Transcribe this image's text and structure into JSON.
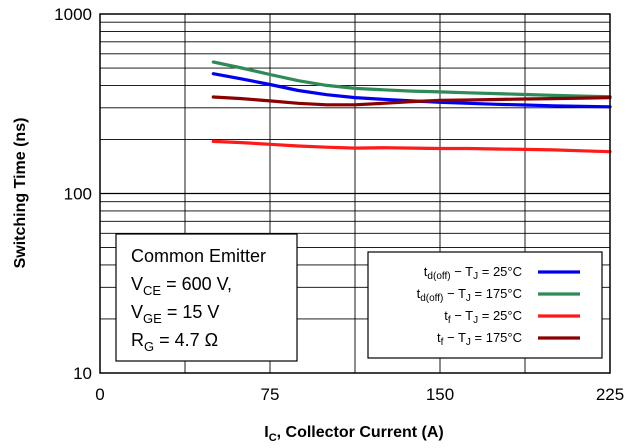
{
  "chart_data": {
    "type": "line",
    "title": "",
    "xlabel": {
      "main": "I",
      "sub": "C",
      "rest": ", Collector Current (A)"
    },
    "ylabel": "Switching Time (ns)",
    "xlim": [
      0,
      225
    ],
    "ylim": [
      10,
      1000
    ],
    "yscale": "log",
    "grid": true,
    "xticks": [
      0,
      75,
      150,
      225
    ],
    "xtick_labels": [
      "0",
      "75",
      "150",
      "225"
    ],
    "ytick_values": [
      10,
      100,
      1000
    ],
    "ytick_labels": [
      "10",
      "100",
      "1000"
    ],
    "x_minor_grid": [
      37.5,
      112.5,
      187.5
    ],
    "legend_position": "bottom-right",
    "series": [
      {
        "name": "t_d(off) − T_J = 25°C",
        "legend": [
          {
            "t": "t"
          },
          {
            "t": "d(off)",
            "sub": true
          },
          {
            "t": " − T"
          },
          {
            "t": "J",
            "sub": true
          },
          {
            "t": " = 25°C"
          }
        ],
        "color": "#0000ee",
        "x": [
          50,
          62.5,
          75,
          87.5,
          100,
          112.5,
          125,
          137.5,
          150,
          162.5,
          175,
          187.5,
          200,
          212.5,
          225
        ],
        "y": [
          465,
          435,
          405,
          375,
          355,
          342,
          335,
          328,
          322,
          318,
          314,
          311,
          308,
          306,
          304
        ]
      },
      {
        "name": "t_d(off) − T_J = 175°C",
        "legend": [
          {
            "t": "t"
          },
          {
            "t": "d(off)",
            "sub": true
          },
          {
            "t": " − T"
          },
          {
            "t": "J",
            "sub": true
          },
          {
            "t": " = 175°C"
          }
        ],
        "color": "#2e8b57",
        "x": [
          50,
          62.5,
          75,
          87.5,
          100,
          112.5,
          125,
          137.5,
          150,
          162.5,
          175,
          187.5,
          200,
          212.5,
          225
        ],
        "y": [
          540,
          500,
          460,
          425,
          400,
          385,
          378,
          372,
          368,
          364,
          360,
          356,
          352,
          349,
          346
        ]
      },
      {
        "name": "t_f − T_J = 25°C",
        "legend": [
          {
            "t": "t"
          },
          {
            "t": "f",
            "sub": true
          },
          {
            "t": " − T"
          },
          {
            "t": "J",
            "sub": true
          },
          {
            "t": " = 25°C"
          }
        ],
        "color": "#ff1a1a",
        "x": [
          50,
          62.5,
          75,
          87.5,
          100,
          112.5,
          125,
          137.5,
          150,
          162.5,
          175,
          187.5,
          200,
          212.5,
          225
        ],
        "y": [
          195,
          192,
          188,
          184,
          181,
          179,
          180,
          179,
          178,
          178,
          177,
          176,
          175,
          173,
          171
        ]
      },
      {
        "name": "t_f − T_J = 175°C",
        "legend": [
          {
            "t": "t"
          },
          {
            "t": "f",
            "sub": true
          },
          {
            "t": " − T"
          },
          {
            "t": "J",
            "sub": true
          },
          {
            "t": " = 175°C"
          }
        ],
        "color": "#8b0000",
        "x": [
          50,
          62.5,
          75,
          87.5,
          100,
          112.5,
          125,
          137.5,
          150,
          162.5,
          175,
          187.5,
          200,
          212.5,
          225
        ],
        "y": [
          345,
          338,
          328,
          318,
          312,
          312,
          318,
          325,
          330,
          332,
          334,
          336,
          338,
          340,
          342
        ]
      }
    ]
  },
  "conditions": {
    "line1": "Common Emitter",
    "line2": {
      "pre": "V",
      "sub": "CE",
      "post": " = 600 V,"
    },
    "line3": {
      "pre": "V",
      "sub": "GE",
      "post": " = 15 V"
    },
    "line4": {
      "pre": "R",
      "sub": "G",
      "post": " = 4.7 Ω"
    }
  }
}
